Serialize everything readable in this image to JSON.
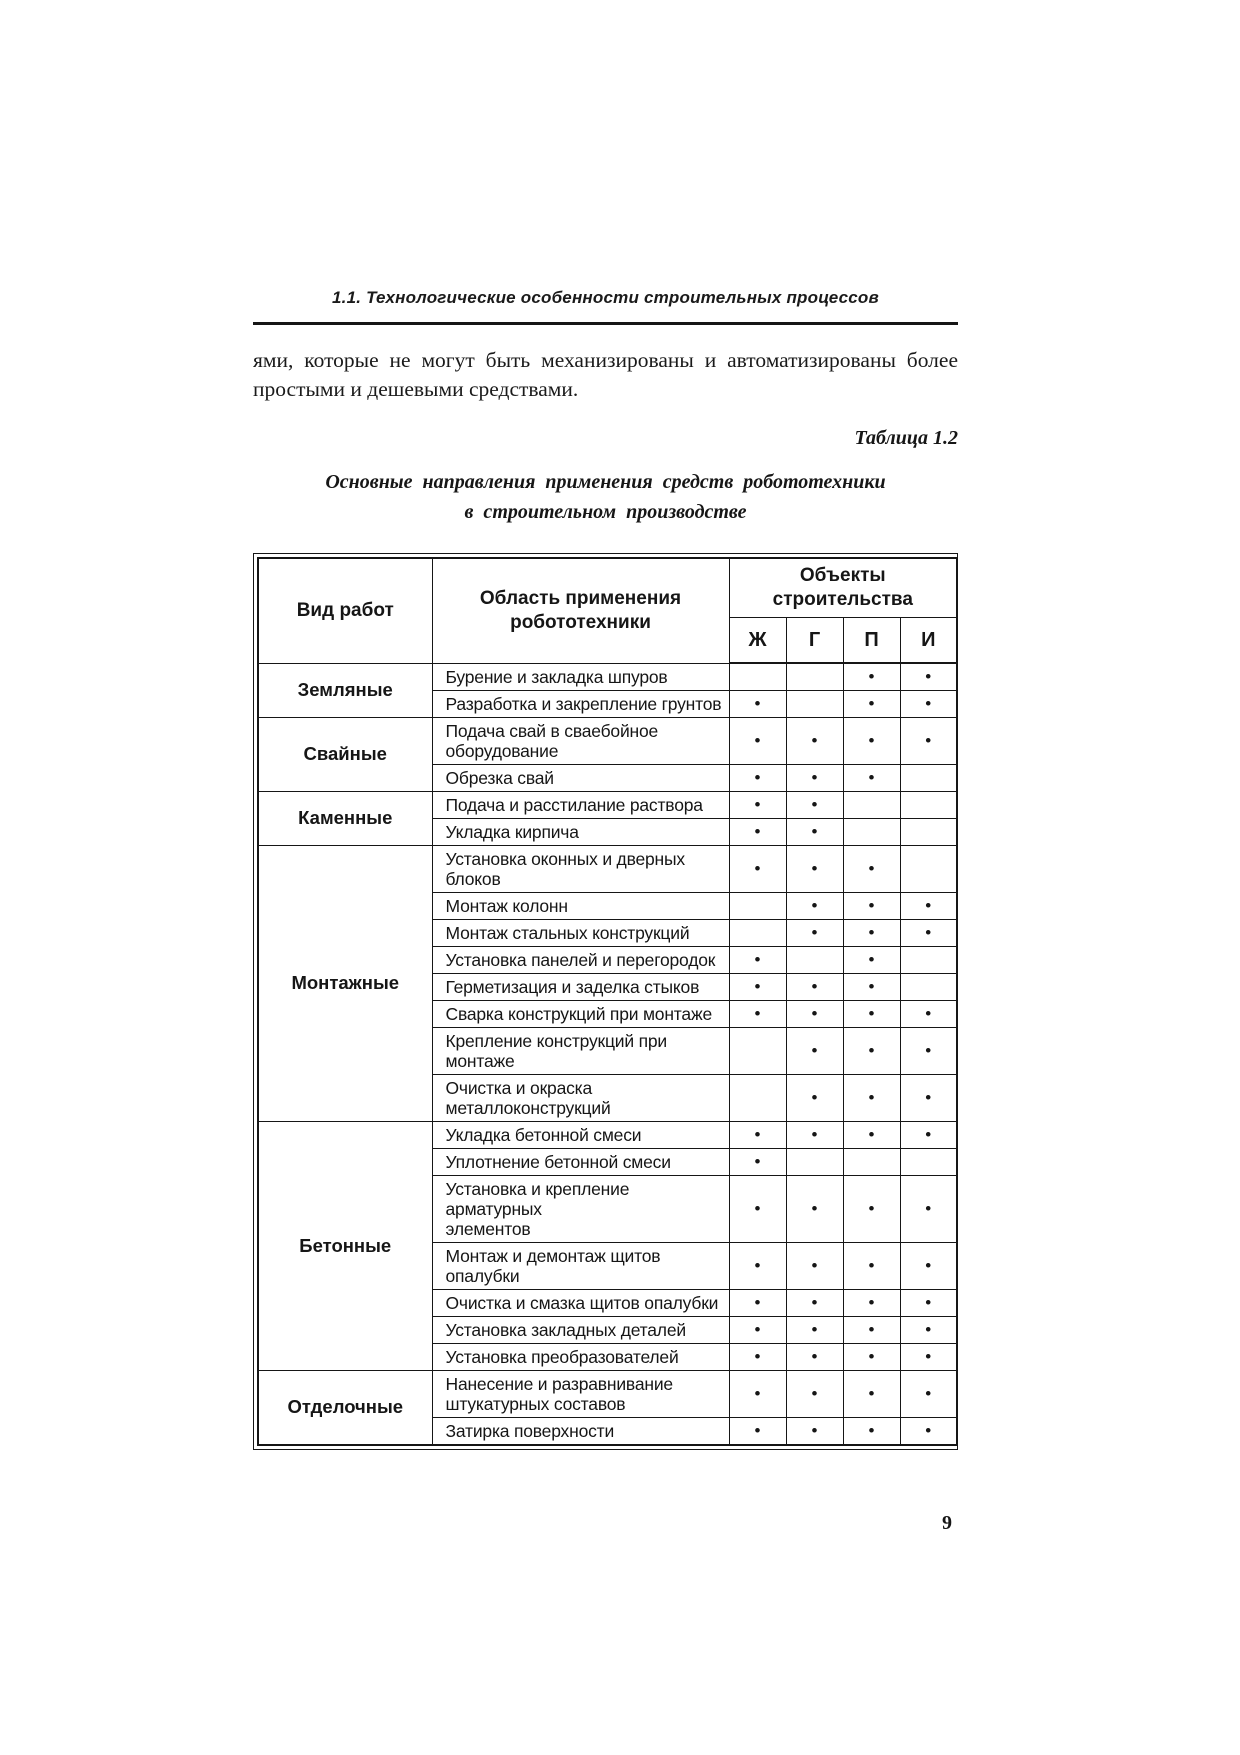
{
  "page": {
    "running_head": "1.1. Технологические особенности строительных процессов",
    "paragraph": "ями, которые не могут быть механизированы и автоматизированы более простыми и дешевыми средствами.",
    "table_label": "Таблица 1.2",
    "table_title": "Основные направления применения средств робототехники\nв строительном производстве",
    "page_number": "9"
  },
  "table": {
    "col1_header": "Вид работ",
    "col2_header": "Область применения\nробототехники",
    "objects_header": "Объекты\nстроительства",
    "object_columns": [
      "Ж",
      "Г",
      "П",
      "И"
    ],
    "dot_char": "•",
    "groups": [
      {
        "type": "Земляные",
        "rows": [
          {
            "area": "Бурение и закладка шпуров",
            "marks": [
              0,
              0,
              1,
              1
            ]
          },
          {
            "area": "Разработка и закрепление грунтов",
            "marks": [
              1,
              0,
              1,
              1
            ]
          }
        ]
      },
      {
        "type": "Свайные",
        "rows": [
          {
            "area": "Подача свай в сваебойное\nоборудование",
            "marks": [
              1,
              1,
              1,
              1
            ]
          },
          {
            "area": "Обрезка свай",
            "marks": [
              1,
              1,
              1,
              0
            ]
          }
        ]
      },
      {
        "type": "Каменные",
        "rows": [
          {
            "area": "Подача и расстилание раствора",
            "marks": [
              1,
              1,
              0,
              0
            ]
          },
          {
            "area": "Укладка кирпича",
            "marks": [
              1,
              1,
              0,
              0
            ]
          }
        ]
      },
      {
        "type": "Монтажные",
        "rows": [
          {
            "area": "Установка оконных и дверных\nблоков",
            "marks": [
              1,
              1,
              1,
              0
            ]
          },
          {
            "area": "Монтаж колонн",
            "marks": [
              0,
              1,
              1,
              1
            ]
          },
          {
            "area": "Монтаж стальных конструкций",
            "marks": [
              0,
              1,
              1,
              1
            ]
          },
          {
            "area": "Установка панелей и перегородок",
            "marks": [
              1,
              0,
              1,
              0
            ]
          },
          {
            "area": "Герметизация и заделка стыков",
            "marks": [
              1,
              1,
              1,
              0
            ]
          },
          {
            "area": "Сварка конструкций при монтаже",
            "marks": [
              1,
              1,
              1,
              1
            ]
          },
          {
            "area": "Крепление конструкций при\nмонтаже",
            "marks": [
              0,
              1,
              1,
              1
            ]
          },
          {
            "area": "Очистка и окраска\nметаллоконструкций",
            "marks": [
              0,
              1,
              1,
              1
            ]
          }
        ]
      },
      {
        "type": "Бетонные",
        "rows": [
          {
            "area": "Укладка бетонной смеси",
            "marks": [
              1,
              1,
              1,
              1
            ]
          },
          {
            "area": "Уплотнение бетонной смеси",
            "marks": [
              1,
              0,
              0,
              0
            ]
          },
          {
            "area": "Установка и крепление арматурных\nэлементов",
            "marks": [
              1,
              1,
              1,
              1
            ]
          },
          {
            "area": "Монтаж и демонтаж щитов\nопалубки",
            "marks": [
              1,
              1,
              1,
              1
            ]
          },
          {
            "area": "Очистка и смазка щитов опалубки",
            "marks": [
              1,
              1,
              1,
              1
            ]
          },
          {
            "area": "Установка закладных деталей",
            "marks": [
              1,
              1,
              1,
              1
            ]
          },
          {
            "area": "Установка преобразователей",
            "marks": [
              1,
              1,
              1,
              1
            ]
          }
        ]
      },
      {
        "type": "Отделочные",
        "rows": [
          {
            "area": "Нанесение и разравнивание\nштукатурных составов",
            "marks": [
              1,
              1,
              1,
              1
            ]
          },
          {
            "area": "Затирка поверхности",
            "marks": [
              1,
              1,
              1,
              1
            ]
          }
        ]
      }
    ]
  }
}
